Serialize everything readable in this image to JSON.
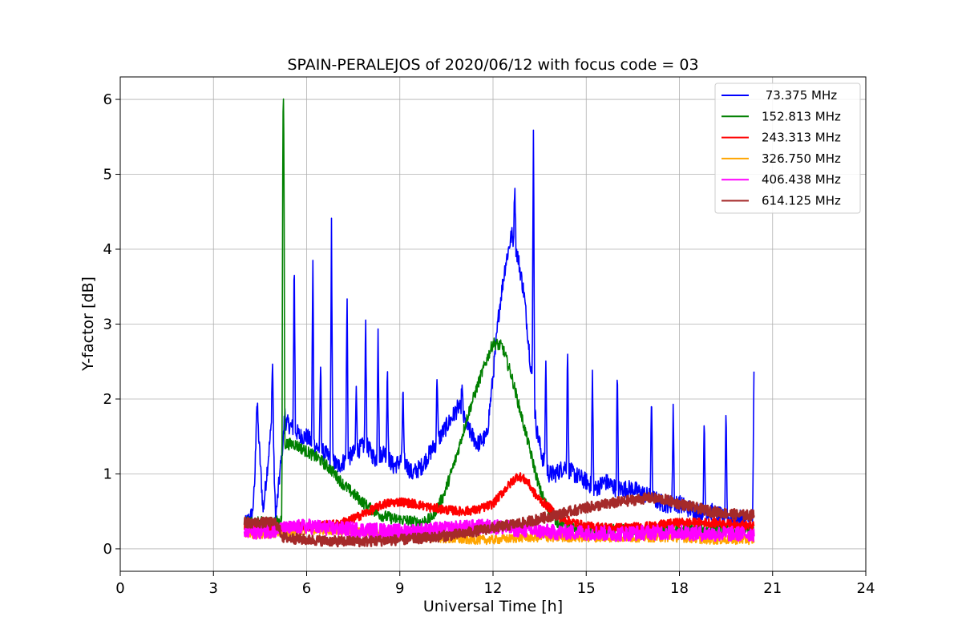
{
  "chart_data": {
    "type": "line",
    "title": "SPAIN-PERALEJOS of 2020/06/12 with focus code = 03",
    "xlabel": "Universal Time [h]",
    "ylabel": "Y-factor [dB]",
    "xlim": [
      0,
      24
    ],
    "ylim": [
      -0.3,
      6.3
    ],
    "xticks": [
      0,
      3,
      6,
      9,
      12,
      15,
      18,
      21,
      24
    ],
    "yticks": [
      0,
      1,
      2,
      3,
      4,
      5,
      6
    ],
    "grid": true,
    "legend_position": "top-right",
    "series": [
      {
        "name": " 73.375 MHz",
        "color": "#0000ff",
        "x": [
          4.0,
          4.3,
          4.4,
          4.6,
          4.9,
          5.0,
          5.3,
          5.6,
          5.8,
          6.0,
          6.2,
          6.5,
          6.8,
          7.0,
          7.3,
          7.6,
          7.9,
          8.2,
          8.5,
          8.8,
          9.1,
          9.4,
          9.7,
          10.0,
          10.3,
          10.6,
          10.9,
          11.2,
          11.5,
          11.8,
          12.0,
          12.2,
          12.4,
          12.6,
          12.8,
          13.0,
          13.2,
          13.4,
          13.6,
          13.8,
          14.0,
          14.3,
          14.6,
          15.0,
          15.3,
          15.6,
          16.0,
          16.5,
          17.0,
          17.5,
          18.0,
          18.5,
          19.0,
          19.5,
          20.0,
          20.4
        ],
        "y": [
          0.3,
          0.5,
          1.9,
          0.5,
          1.8,
          0.4,
          1.7,
          1.6,
          1.5,
          1.5,
          1.4,
          1.3,
          1.2,
          1.1,
          1.2,
          1.3,
          1.4,
          1.2,
          1.3,
          1.1,
          1.2,
          1.0,
          1.1,
          1.3,
          1.5,
          1.7,
          1.9,
          1.6,
          1.4,
          1.5,
          2.3,
          3.2,
          3.8,
          4.2,
          3.9,
          3.4,
          2.5,
          1.6,
          1.2,
          1.0,
          1.0,
          1.1,
          1.0,
          0.9,
          0.8,
          0.9,
          0.8,
          0.8,
          0.7,
          0.6,
          0.6,
          0.5,
          0.5,
          0.4,
          0.4,
          0.4
        ],
        "spikes": [
          [
            4.3,
            0.75
          ],
          [
            4.4,
            1.93
          ],
          [
            4.9,
            2.5
          ],
          [
            5.3,
            1.8
          ],
          [
            5.6,
            3.95
          ],
          [
            6.2,
            3.95
          ],
          [
            6.45,
            2.5
          ],
          [
            6.8,
            4.4
          ],
          [
            7.3,
            3.5
          ],
          [
            7.6,
            2.2
          ],
          [
            7.9,
            3.1
          ],
          [
            8.3,
            3.05
          ],
          [
            8.6,
            2.5
          ],
          [
            9.1,
            2.2
          ],
          [
            10.2,
            2.4
          ],
          [
            11.0,
            2.2
          ],
          [
            12.7,
            4.95
          ],
          [
            13.3,
            5.8
          ],
          [
            13.7,
            2.6
          ],
          [
            14.4,
            2.8
          ],
          [
            15.2,
            2.4
          ],
          [
            16.0,
            2.4
          ],
          [
            17.1,
            2.1
          ],
          [
            17.8,
            1.95
          ],
          [
            18.8,
            1.7
          ],
          [
            19.5,
            1.95
          ],
          [
            20.4,
            2.3
          ]
        ]
      },
      {
        "name": "152.813 MHz",
        "color": "#008000",
        "x": [
          4.0,
          5.0,
          5.2,
          5.25,
          5.3,
          5.6,
          6.0,
          6.4,
          6.8,
          7.2,
          7.6,
          8.0,
          8.4,
          8.8,
          9.2,
          9.6,
          10.0,
          10.4,
          10.8,
          11.2,
          11.6,
          12.0,
          12.3,
          12.6,
          12.9,
          13.2,
          13.5,
          13.8,
          14.1,
          14.5,
          15.0,
          15.5,
          16.0,
          17.0,
          18.0,
          19.0,
          20.0,
          20.4
        ],
        "y": [
          0.35,
          0.35,
          0.4,
          6.05,
          1.4,
          1.4,
          1.3,
          1.2,
          1.05,
          0.85,
          0.7,
          0.55,
          0.45,
          0.4,
          0.38,
          0.35,
          0.4,
          0.7,
          1.2,
          1.8,
          2.3,
          2.75,
          2.7,
          2.3,
          1.8,
          1.3,
          0.8,
          0.5,
          0.35,
          0.28,
          0.25,
          0.25,
          0.25,
          0.25,
          0.25,
          0.25,
          0.25,
          0.25
        ],
        "spikes": [
          [
            5.25,
            6.05
          ]
        ]
      },
      {
        "name": "243.313 MHz",
        "color": "#ff0000",
        "x": [
          4.0,
          5.0,
          6.0,
          7.0,
          7.5,
          8.0,
          8.5,
          9.0,
          9.5,
          10.0,
          10.5,
          11.0,
          11.5,
          12.0,
          12.4,
          12.8,
          13.1,
          13.4,
          13.8,
          14.2,
          15.0,
          16.0,
          17.0,
          18.0,
          19.0,
          20.0,
          20.4
        ],
        "y": [
          0.3,
          0.3,
          0.3,
          0.33,
          0.4,
          0.5,
          0.6,
          0.63,
          0.6,
          0.55,
          0.52,
          0.5,
          0.52,
          0.6,
          0.8,
          0.98,
          0.9,
          0.7,
          0.55,
          0.4,
          0.3,
          0.28,
          0.3,
          0.35,
          0.35,
          0.32,
          0.3
        ],
        "spikes": []
      },
      {
        "name": "326.750 MHz",
        "color": "#ffa500",
        "x": [
          4.0,
          5.0,
          6.0,
          7.0,
          8.0,
          9.0,
          10.0,
          11.0,
          12.0,
          13.0,
          14.0,
          15.0,
          16.0,
          17.0,
          18.0,
          19.0,
          20.0,
          20.4
        ],
        "y": [
          0.2,
          0.2,
          0.25,
          0.25,
          0.22,
          0.18,
          0.15,
          0.12,
          0.12,
          0.15,
          0.15,
          0.15,
          0.15,
          0.15,
          0.15,
          0.12,
          0.12,
          0.12
        ],
        "spikes": []
      },
      {
        "name": "406.438 MHz",
        "color": "#ff00ff",
        "x": [
          4.0,
          5.0,
          6.0,
          7.0,
          8.0,
          9.0,
          10.0,
          11.0,
          12.0,
          13.0,
          14.0,
          15.0,
          16.0,
          17.0,
          18.0,
          19.0,
          20.0,
          20.4
        ],
        "y": [
          0.22,
          0.25,
          0.3,
          0.27,
          0.25,
          0.23,
          0.25,
          0.28,
          0.3,
          0.25,
          0.22,
          0.22,
          0.2,
          0.22,
          0.22,
          0.2,
          0.2,
          0.2
        ],
        "spikes": []
      },
      {
        "name": "614.125 MHz",
        "color": "#a52a2a",
        "x": [
          4.0,
          5.0,
          5.25,
          6.0,
          7.0,
          8.0,
          9.0,
          10.0,
          11.0,
          12.0,
          13.0,
          14.0,
          15.0,
          16.0,
          17.0,
          17.5,
          18.0,
          19.0,
          20.0,
          20.4
        ],
        "y": [
          0.35,
          0.35,
          0.15,
          0.12,
          0.1,
          0.1,
          0.12,
          0.15,
          0.2,
          0.28,
          0.35,
          0.45,
          0.55,
          0.62,
          0.68,
          0.66,
          0.6,
          0.5,
          0.45,
          0.45
        ],
        "spikes": []
      }
    ]
  }
}
